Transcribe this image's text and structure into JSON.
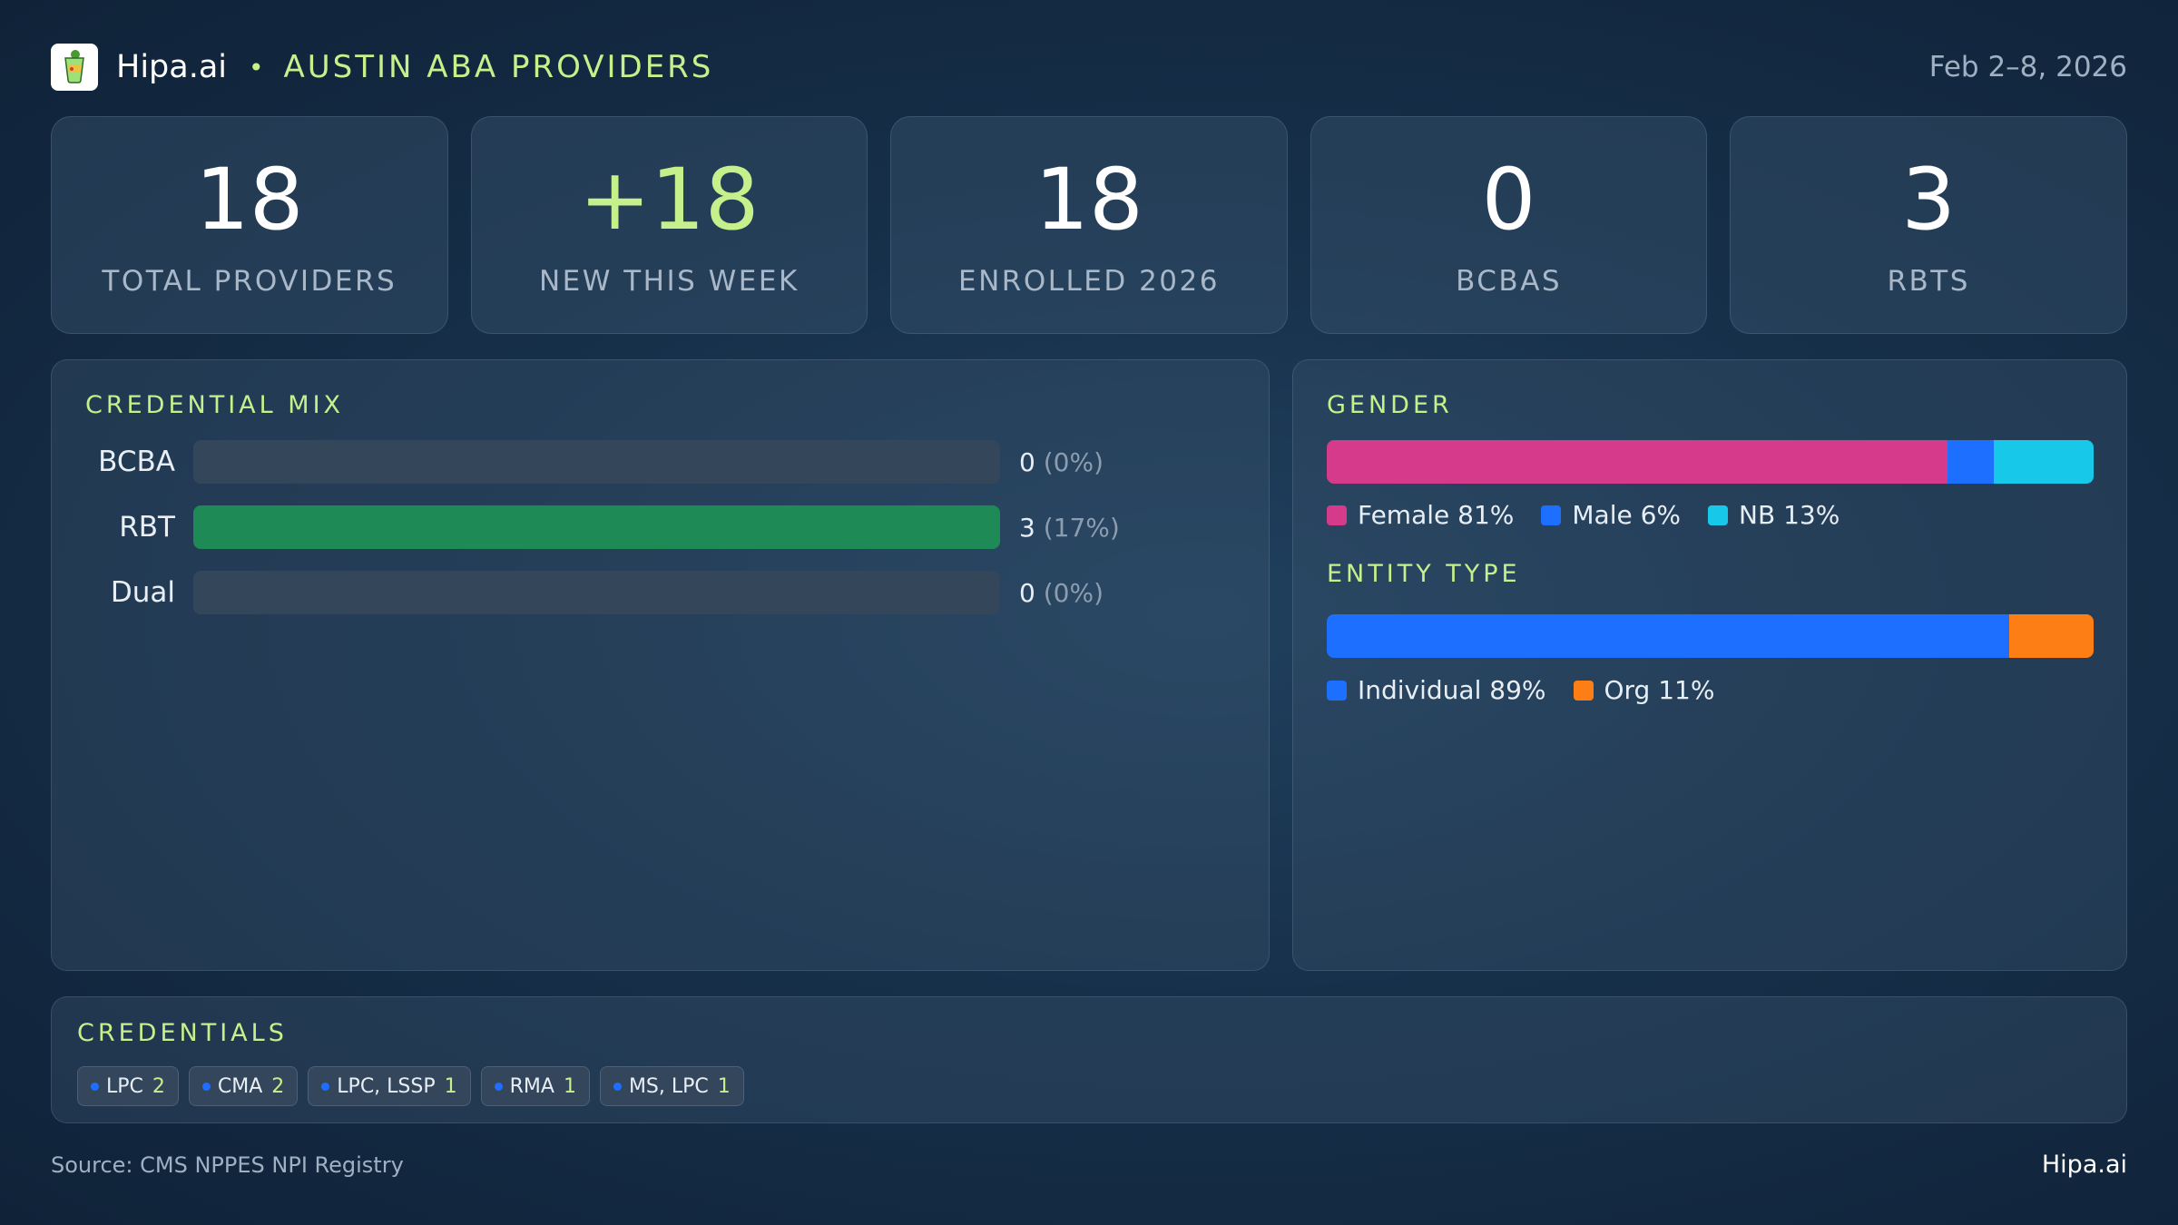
{
  "header": {
    "brand": "Hipa.ai",
    "separator": "•",
    "title": "AUSTIN ABA PROVIDERS",
    "date": "Feb 2–8, 2026",
    "logo_icon": "cocktail-glass-icon"
  },
  "stats": [
    {
      "value": "18",
      "label": "TOTAL PROVIDERS"
    },
    {
      "value": "+18",
      "label": "NEW THIS WEEK",
      "accent": true
    },
    {
      "value": "18",
      "label": "ENROLLED 2026"
    },
    {
      "value": "0",
      "label": "BCBAS"
    },
    {
      "value": "3",
      "label": "RBTS"
    }
  ],
  "credential_mix": {
    "title": "CREDENTIAL MIX",
    "rows": [
      {
        "label": "BCBA",
        "count": "0",
        "pct": "(0%)",
        "fraction": 0
      },
      {
        "label": "RBT",
        "count": "3",
        "pct": "(17%)",
        "fraction": 1
      },
      {
        "label": "Dual",
        "count": "0",
        "pct": "(0%)",
        "fraction": 0
      }
    ]
  },
  "gender": {
    "title": "GENDER",
    "segments": [
      {
        "label": "Female 81%",
        "percent": 81,
        "color": "#d63a8a"
      },
      {
        "label": "Male 6%",
        "percent": 6,
        "color": "#1d6fff"
      },
      {
        "label": "NB 13%",
        "percent": 13,
        "color": "#17c8e8"
      }
    ]
  },
  "entity_type": {
    "title": "ENTITY TYPE",
    "segments": [
      {
        "label": "Individual 89%",
        "percent": 89,
        "color": "#1d6fff"
      },
      {
        "label": "Org 11%",
        "percent": 11,
        "color": "#fd7e14"
      }
    ]
  },
  "credentials": {
    "title": "CREDENTIALS",
    "chips": [
      {
        "name": "LPC",
        "count": "2"
      },
      {
        "name": "CMA",
        "count": "2"
      },
      {
        "name": "LPC, LSSP",
        "count": "1"
      },
      {
        "name": "RMA",
        "count": "1"
      },
      {
        "name": "MS, LPC",
        "count": "1"
      }
    ]
  },
  "footer": {
    "source": "Source: CMS NPPES NPI Registry",
    "brand": "Hipa.ai"
  },
  "colors": {
    "accent": "#c6f08c",
    "rbt_bar": "#1e8a55",
    "track": "#34465a"
  }
}
